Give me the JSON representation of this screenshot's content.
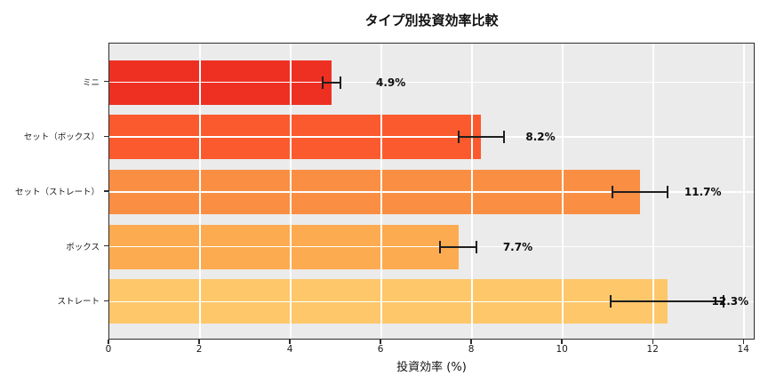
{
  "chart_data": {
    "type": "bar",
    "orientation": "horizontal",
    "title": "タイプ別投資効率比較",
    "xlabel": "投資効率 (%)",
    "categories": [
      "ミニ",
      "セット（ボックス）",
      "セット（ストレート）",
      "ボックス",
      "ストレート"
    ],
    "values": [
      4.9,
      8.2,
      11.7,
      7.7,
      12.3
    ],
    "value_labels": [
      "4.9%",
      "8.2%",
      "11.7%",
      "7.7%",
      "12.3%"
    ],
    "errors": [
      0.2,
      0.5,
      0.6,
      0.4,
      1.25
    ],
    "bar_colors": [
      "#ee3023",
      "#fa5a2e",
      "#fa8e43",
      "#fcab51",
      "#fdc76a"
    ],
    "xticks": [
      0,
      2,
      4,
      6,
      8,
      10,
      12,
      14
    ],
    "xlim": [
      0,
      14.25
    ],
    "grid": true,
    "legend": "none",
    "plot_bg_color": "#ebebeb",
    "grid_color": "#ffffff",
    "errorbar_color": "#1f1f1f",
    "figure_bg_color": "#ffffff"
  }
}
